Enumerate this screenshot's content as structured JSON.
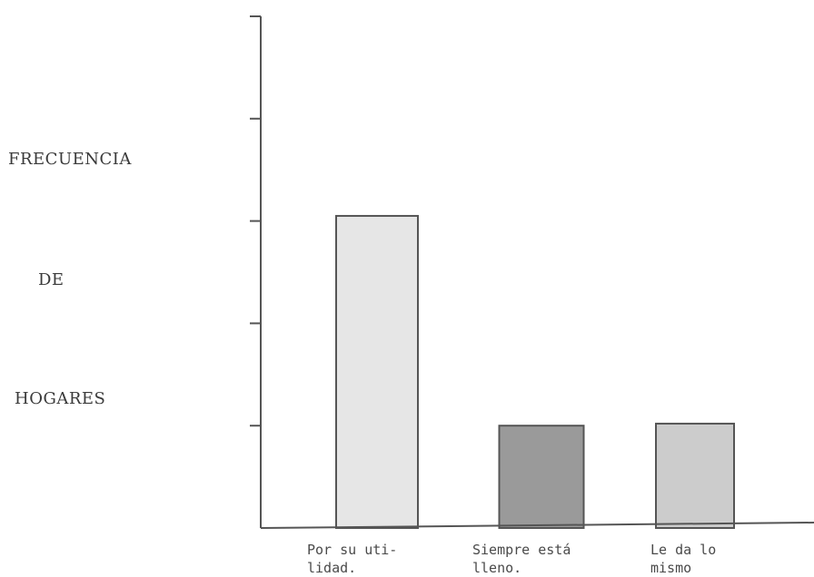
{
  "chart_data": {
    "type": "bar",
    "title": "",
    "xlabel": "",
    "ylabel_lines": [
      "FRECUENCIA",
      "DE",
      "HOGARES"
    ],
    "categories": [
      [
        "Por su uti-",
        "lidad."
      ],
      [
        "Siempre está",
        "lleno."
      ],
      [
        "Le da lo",
        "mismo"
      ]
    ],
    "values": [
      3.05,
      1.0,
      1.02
    ],
    "ylim": [
      0,
      5
    ],
    "tick_count": 5,
    "tick_labels_shown": false,
    "grid": false,
    "legend": "none",
    "bar_colors": [
      "#e6e6e6",
      "#9a9a9a",
      "#cccccc"
    ],
    "axis_color": "#555555",
    "bar_edge_color": "#555555"
  }
}
